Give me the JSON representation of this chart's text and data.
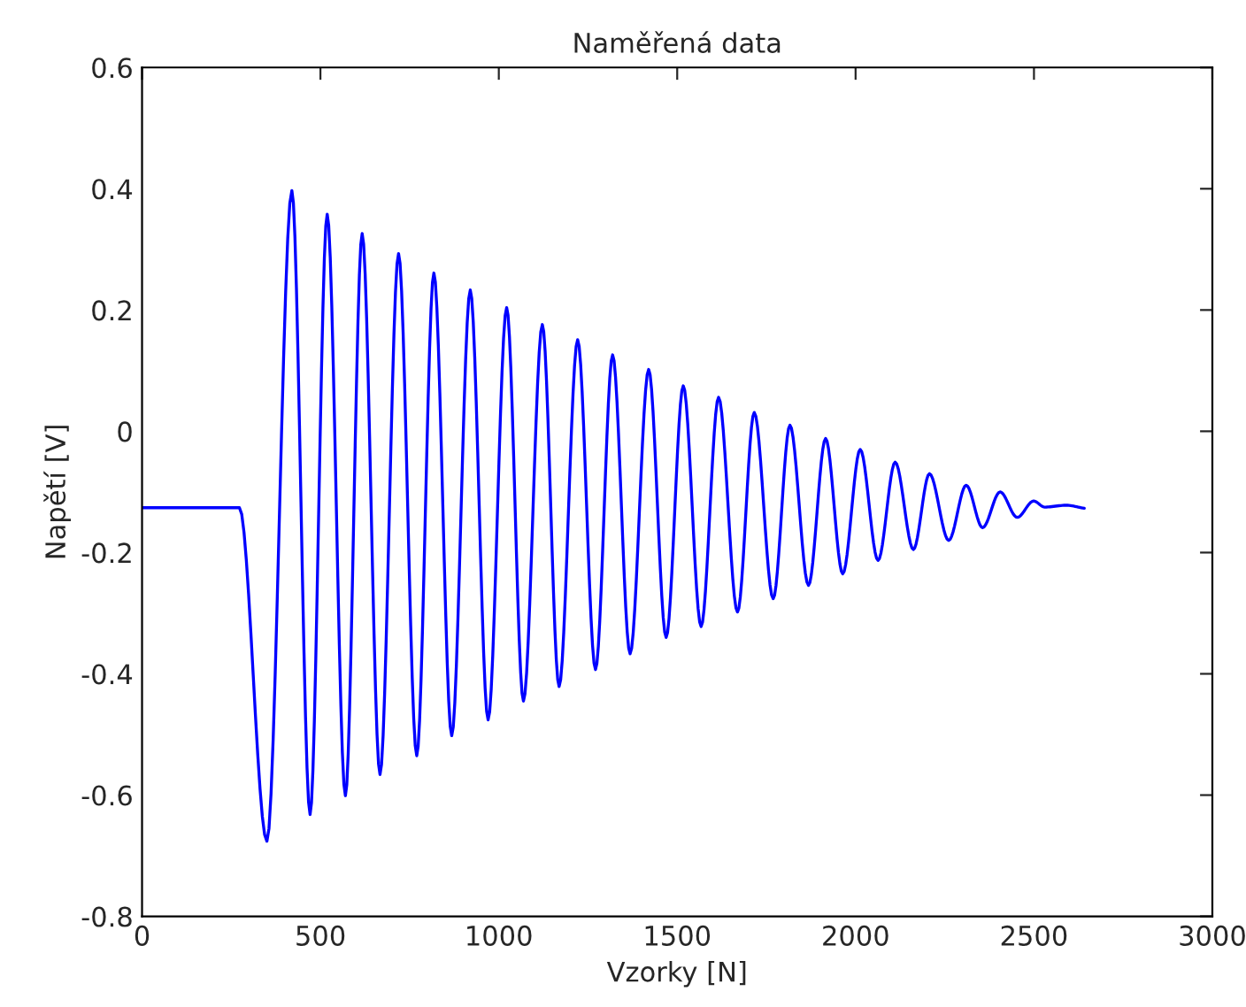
{
  "chart_data": {
    "type": "line",
    "title": "Naměřená data",
    "xlabel": "Vzorky [N]",
    "ylabel": "Napětí [V]",
    "xlim": [
      0,
      3000
    ],
    "xticks": [
      0,
      500,
      1000,
      1500,
      2000,
      2500,
      3000
    ],
    "ylim": [
      -0.8,
      0.6
    ],
    "yticks": [
      -0.8,
      -0.6,
      -0.4,
      -0.2,
      0,
      0.2,
      0.4,
      0.6
    ],
    "grid": false,
    "legend": false,
    "series": [
      {
        "color": "#0000ff",
        "x": [
          0,
          273,
          350,
          420,
          471,
          519,
          570,
          617,
          667,
          719,
          770,
          818,
          868,
          920,
          970,
          1022,
          1069,
          1122,
          1169,
          1221,
          1271,
          1319,
          1368,
          1420,
          1469,
          1517,
          1567,
          1616,
          1669,
          1716,
          1769,
          1816,
          1868,
          1916,
          1964,
          2013,
          2063,
          2111,
          2162,
          2207,
          2261,
          2310,
          2356,
          2405,
          2453,
          2499,
          2530,
          2590,
          2641
        ],
        "values": [
          -0.126,
          -0.126,
          -0.676,
          0.397,
          -0.632,
          0.358,
          -0.601,
          0.326,
          -0.566,
          0.293,
          -0.535,
          0.261,
          -0.502,
          0.233,
          -0.476,
          0.204,
          -0.445,
          0.176,
          -0.421,
          0.151,
          -0.393,
          0.126,
          -0.367,
          0.102,
          -0.34,
          0.075,
          -0.322,
          0.056,
          -0.298,
          0.031,
          -0.276,
          0.01,
          -0.254,
          -0.012,
          -0.235,
          -0.03,
          -0.213,
          -0.051,
          -0.195,
          -0.07,
          -0.18,
          -0.089,
          -0.159,
          -0.1,
          -0.142,
          -0.115,
          -0.125,
          -0.122,
          -0.127
        ]
      }
    ]
  }
}
